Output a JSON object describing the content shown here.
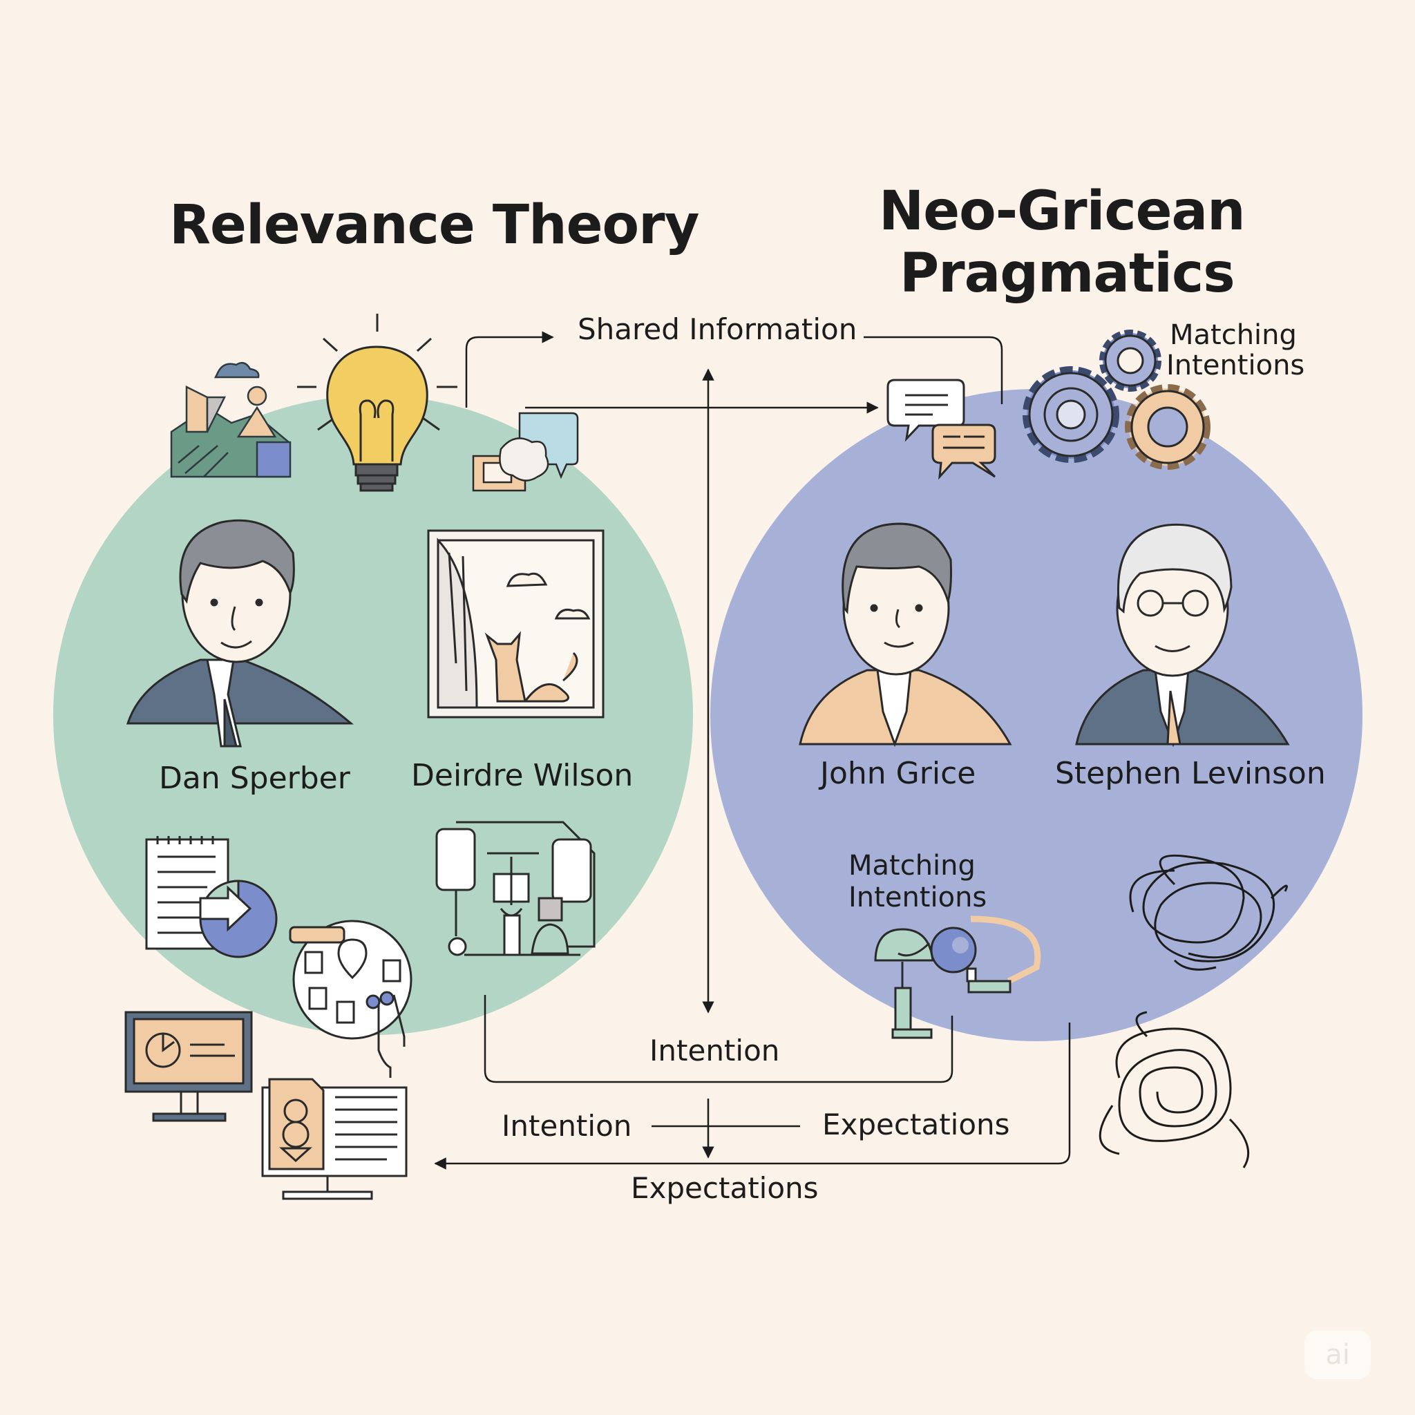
{
  "titles": {
    "left": "Relevance Theory",
    "right_line1": "Neo-Gricean",
    "right_line2": "Pragmatics"
  },
  "people": {
    "sperber": "Dan Sperber",
    "wilson": "Deirdre Wilson",
    "grice": "John Grice",
    "levinson": "Stephen Levinson"
  },
  "flow_labels": {
    "shared_information": "Shared Information",
    "intention_center": "Intention",
    "intention_lower": "Intention",
    "expectations_right": "Expectations",
    "expectations_bottom": "Expectations"
  },
  "matching_top": {
    "line1": "Matching",
    "line2": "Intentions"
  },
  "matching_inner": {
    "line1": "Matching",
    "line2": "Intentions"
  },
  "watermark": "ai",
  "colors": {
    "background": "#fbf3e9",
    "left_circle": "#b3d5c6",
    "right_circle": "#a7b1d8",
    "line": "#2a2a2a",
    "accent_yellow": "#f2cd62",
    "accent_peach": "#f0cba4",
    "accent_slate": "#5f7187"
  },
  "icons": [
    "landscape-icon",
    "lightbulb-icon",
    "chat-devices-icon",
    "person-avatar-icon",
    "window-cat-icon",
    "notepad-pie-icon",
    "map-touch-icon",
    "lab-apparatus-icon",
    "monitor-gauge-icon",
    "monitor-document-icon",
    "speech-bubbles-icon",
    "gears-icon",
    "desk-lamp-globe-icon",
    "tangle-icon"
  ]
}
